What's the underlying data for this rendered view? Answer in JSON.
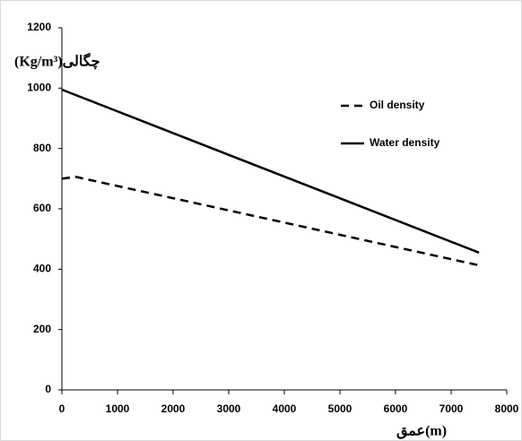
{
  "chart_data": {
    "type": "line",
    "x_label": "عمق(m)",
    "y_label": "(Kg/m³)چگالی",
    "xlim": [
      0,
      8000
    ],
    "xticks": [
      0,
      1000,
      2000,
      3000,
      4000,
      5000,
      6000,
      7000,
      8000
    ],
    "ylim": [
      0,
      1200
    ],
    "yticks": [
      0,
      200,
      400,
      600,
      800,
      1000,
      1200
    ],
    "grid": false,
    "legend": "upper right",
    "series": [
      {
        "name": "Oil density",
        "color": "#000000",
        "dash": true,
        "x": [
          0,
          250,
          7500
        ],
        "values": [
          700,
          706,
          413
        ]
      },
      {
        "name": "Water density",
        "color": "#000000",
        "dash": false,
        "x": [
          0,
          7500
        ],
        "values": [
          995,
          455
        ]
      }
    ]
  }
}
